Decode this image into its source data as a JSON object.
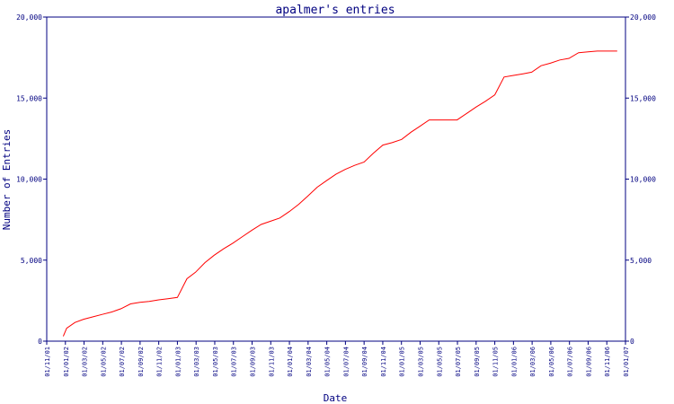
{
  "chart_data": {
    "type": "line",
    "title": "apalmer's entries",
    "xlabel": "Date",
    "ylabel": "Number of Entries",
    "ylim": [
      0,
      20000
    ],
    "y_ticks": [
      0,
      5000,
      10000,
      15000,
      20000
    ],
    "y_tick_labels": [
      "0",
      "5,000",
      "10,000",
      "15,000",
      "20,000"
    ],
    "x_tick_labels": [
      "01/11/01",
      "01/01/02",
      "01/03/02",
      "01/05/02",
      "01/07/02",
      "01/09/02",
      "01/11/02",
      "01/01/03",
      "01/03/03",
      "01/05/03",
      "01/07/03",
      "01/09/03",
      "01/11/03",
      "01/01/04",
      "01/03/04",
      "01/05/04",
      "01/07/04",
      "01/09/04",
      "01/11/04",
      "01/01/05",
      "01/03/05",
      "01/05/05",
      "01/07/05",
      "01/09/05",
      "01/11/05",
      "01/01/06",
      "01/03/06",
      "01/05/06",
      "01/07/06",
      "01/09/06",
      "01/11/06",
      "01/01/07"
    ],
    "grid": false,
    "legend": "none",
    "line_color": "#ff0000",
    "axis_color": "#000080",
    "series": [
      {
        "x": [
          "2001-12-25",
          "2002-01-05",
          "2002-02-01",
          "2002-03-01",
          "2002-04-01",
          "2002-05-01",
          "2002-06-01",
          "2002-07-01",
          "2002-08-01",
          "2002-09-01",
          "2002-10-01",
          "2002-11-01",
          "2002-12-01",
          "2003-01-01",
          "2003-02-01",
          "2003-03-01",
          "2003-04-01",
          "2003-05-01",
          "2003-06-01",
          "2003-07-01",
          "2003-08-01",
          "2003-09-01",
          "2003-10-01",
          "2003-11-01",
          "2003-12-01",
          "2004-01-01",
          "2004-02-01",
          "2004-03-01",
          "2004-04-01",
          "2004-05-01",
          "2004-06-01",
          "2004-07-01",
          "2004-08-01",
          "2004-09-01",
          "2004-10-01",
          "2004-11-01",
          "2004-12-01",
          "2005-01-01",
          "2005-02-01",
          "2005-03-01",
          "2005-04-01",
          "2005-05-01",
          "2005-06-01",
          "2005-07-01",
          "2005-08-01",
          "2005-09-01",
          "2005-10-01",
          "2005-11-01",
          "2005-12-01",
          "2006-01-01",
          "2006-02-01",
          "2006-03-01",
          "2006-04-01",
          "2006-05-01",
          "2006-06-01",
          "2006-07-01",
          "2006-08-01",
          "2006-09-01",
          "2006-10-01",
          "2006-11-01",
          "2006-12-05"
        ],
        "values": [
          300,
          800,
          1150,
          1350,
          1500,
          1650,
          1800,
          2000,
          2300,
          2400,
          2450,
          2550,
          2620,
          2700,
          3850,
          4250,
          4850,
          5300,
          5700,
          6050,
          6450,
          6850,
          7200,
          7400,
          7600,
          8000,
          8450,
          8950,
          9500,
          9900,
          10300,
          10600,
          10850,
          11050,
          11600,
          12100,
          12250,
          12450,
          12900,
          13250,
          13650,
          13650,
          13650,
          13650,
          14050,
          14450,
          14800,
          15200,
          16300,
          16400,
          16500,
          16600,
          17000,
          17150,
          17350,
          17450,
          17800,
          17850,
          17900,
          17900,
          17900
        ]
      }
    ]
  }
}
